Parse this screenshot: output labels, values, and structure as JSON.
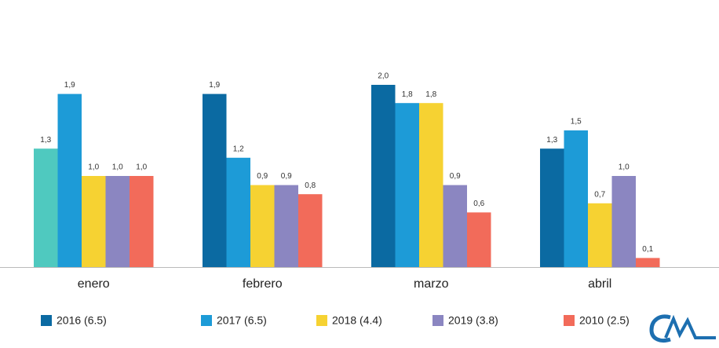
{
  "chart_data": {
    "type": "bar",
    "categories": [
      "enero",
      "febrero",
      "marzo",
      "abril"
    ],
    "series": [
      {
        "name": "2016 (6.5)",
        "color": "#0b6aa2",
        "colors": [
          "#4fc9bf",
          "#0b6aa2",
          "#0b6aa2",
          "#0b6aa2"
        ],
        "values": [
          1.3,
          1.9,
          2.0,
          1.3
        ],
        "value_labels": [
          "1,3",
          "1,9",
          "2,0",
          "1,3"
        ]
      },
      {
        "name": "2017 (6.5)",
        "color": "#1d9bd7",
        "values": [
          1.9,
          1.2,
          1.8,
          1.5
        ],
        "value_labels": [
          "1,9",
          "1,2",
          "1,8",
          "1,5"
        ]
      },
      {
        "name": "2018 (4.4)",
        "color": "#f6d232",
        "values": [
          1.0,
          0.9,
          1.8,
          0.7
        ],
        "value_labels": [
          "1,0",
          "0,9",
          "1,8",
          "0,7"
        ]
      },
      {
        "name": "2019 (3.8)",
        "color": "#8b86c1",
        "values": [
          1.0,
          0.9,
          0.9,
          1.0
        ],
        "value_labels": [
          "1,0",
          "0,9",
          "0,9",
          "1,0"
        ]
      },
      {
        "name": "2010 (2.5)",
        "color": "#f26b5a",
        "values": [
          1.0,
          0.8,
          0.6,
          0.1
        ],
        "value_labels": [
          "1,0",
          "0,8",
          "0,6",
          "0,1"
        ]
      }
    ],
    "ylim": [
      0,
      2.0
    ]
  }
}
